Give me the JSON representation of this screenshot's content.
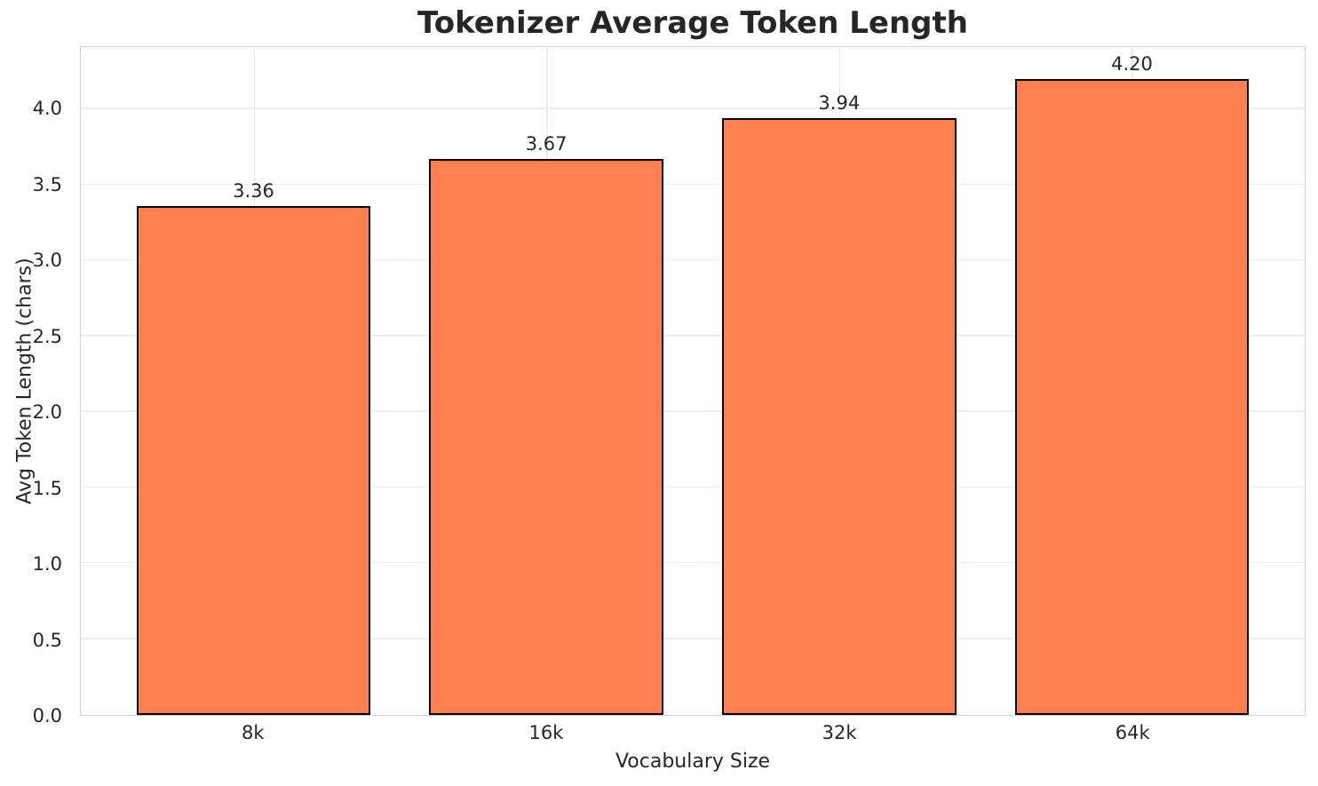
{
  "chart_data": {
    "type": "bar",
    "title": "Tokenizer Average Token Length",
    "xlabel": "Vocabulary Size",
    "ylabel": "Avg Token Length (chars)",
    "categories": [
      "8k",
      "16k",
      "32k",
      "64k"
    ],
    "values": [
      3.36,
      3.67,
      3.94,
      4.2
    ],
    "bar_value_labels": [
      "3.36",
      "3.67",
      "3.94",
      "4.20"
    ],
    "ylim": [
      0,
      4.41
    ],
    "ytick_values": [
      0.0,
      0.5,
      1.0,
      1.5,
      2.0,
      2.5,
      3.0,
      3.5,
      4.0
    ],
    "ytick_labels": [
      "0.0",
      "0.5",
      "1.0",
      "1.5",
      "2.0",
      "2.5",
      "3.0",
      "3.5",
      "4.0"
    ],
    "grid": true,
    "legend": "none",
    "bar_width_fraction": 0.8,
    "colors": {
      "bar_fill": "#FF7F50",
      "bar_edge": "#000000",
      "grid": "#ECECEC",
      "spine": "#D5D5D5",
      "text": "#262626",
      "background": "#FFFFFF"
    }
  }
}
